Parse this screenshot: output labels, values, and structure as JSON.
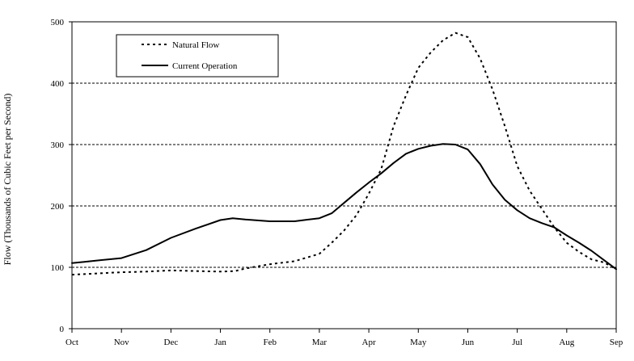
{
  "chart_data": {
    "type": "line",
    "title": "",
    "xlabel": "",
    "ylabel": "Flow (Thousands of Cubic Feet per Second)",
    "categories": [
      "Oct",
      "Nov",
      "Dec",
      "Jan",
      "Feb",
      "Mar",
      "Apr",
      "May",
      "Jun",
      "Jul",
      "Aug",
      "Sep"
    ],
    "ylim": [
      0,
      500
    ],
    "yticks": [
      0,
      100,
      200,
      300,
      400,
      500
    ],
    "grid": "horizontal dashed",
    "legend_position": "top-left",
    "series": [
      {
        "name": "Natural Flow",
        "style": "dotted",
        "color": "#000000",
        "points": [
          [
            0,
            88
          ],
          [
            0.25,
            89
          ],
          [
            0.5,
            90
          ],
          [
            0.75,
            91
          ],
          [
            1,
            92
          ],
          [
            1.5,
            93
          ],
          [
            2,
            95
          ],
          [
            2.5,
            94
          ],
          [
            3,
            93
          ],
          [
            3.3,
            94
          ],
          [
            3.5,
            98
          ],
          [
            4,
            105
          ],
          [
            4.5,
            110
          ],
          [
            5,
            122
          ],
          [
            5.25,
            140
          ],
          [
            5.5,
            160
          ],
          [
            5.75,
            185
          ],
          [
            6,
            220
          ],
          [
            6.25,
            260
          ],
          [
            6.5,
            330
          ],
          [
            6.75,
            380
          ],
          [
            7,
            425
          ],
          [
            7.25,
            450
          ],
          [
            7.5,
            470
          ],
          [
            7.75,
            482
          ],
          [
            8,
            475
          ],
          [
            8.25,
            440
          ],
          [
            8.5,
            390
          ],
          [
            8.75,
            330
          ],
          [
            9,
            265
          ],
          [
            9.25,
            225
          ],
          [
            9.5,
            195
          ],
          [
            9.75,
            165
          ],
          [
            10,
            140
          ],
          [
            10.25,
            125
          ],
          [
            10.5,
            113
          ],
          [
            10.75,
            108
          ],
          [
            11,
            97
          ]
        ]
      },
      {
        "name": "Current Operation",
        "style": "solid",
        "color": "#000000",
        "points": [
          [
            0,
            107
          ],
          [
            0.25,
            109
          ],
          [
            0.5,
            111
          ],
          [
            1,
            115
          ],
          [
            1.5,
            128
          ],
          [
            2,
            148
          ],
          [
            2.5,
            163
          ],
          [
            3,
            177
          ],
          [
            3.25,
            180
          ],
          [
            3.5,
            178
          ],
          [
            4,
            175
          ],
          [
            4.5,
            175
          ],
          [
            5,
            180
          ],
          [
            5.25,
            188
          ],
          [
            5.5,
            205
          ],
          [
            5.75,
            222
          ],
          [
            6,
            238
          ],
          [
            6.25,
            253
          ],
          [
            6.5,
            270
          ],
          [
            6.75,
            285
          ],
          [
            7,
            293
          ],
          [
            7.25,
            298
          ],
          [
            7.5,
            301
          ],
          [
            7.75,
            300
          ],
          [
            8,
            292
          ],
          [
            8.25,
            268
          ],
          [
            8.5,
            235
          ],
          [
            8.75,
            210
          ],
          [
            9,
            193
          ],
          [
            9.25,
            180
          ],
          [
            9.5,
            172
          ],
          [
            9.75,
            165
          ],
          [
            10,
            152
          ],
          [
            10.25,
            140
          ],
          [
            10.5,
            127
          ],
          [
            10.75,
            112
          ],
          [
            11,
            97
          ]
        ]
      }
    ]
  }
}
